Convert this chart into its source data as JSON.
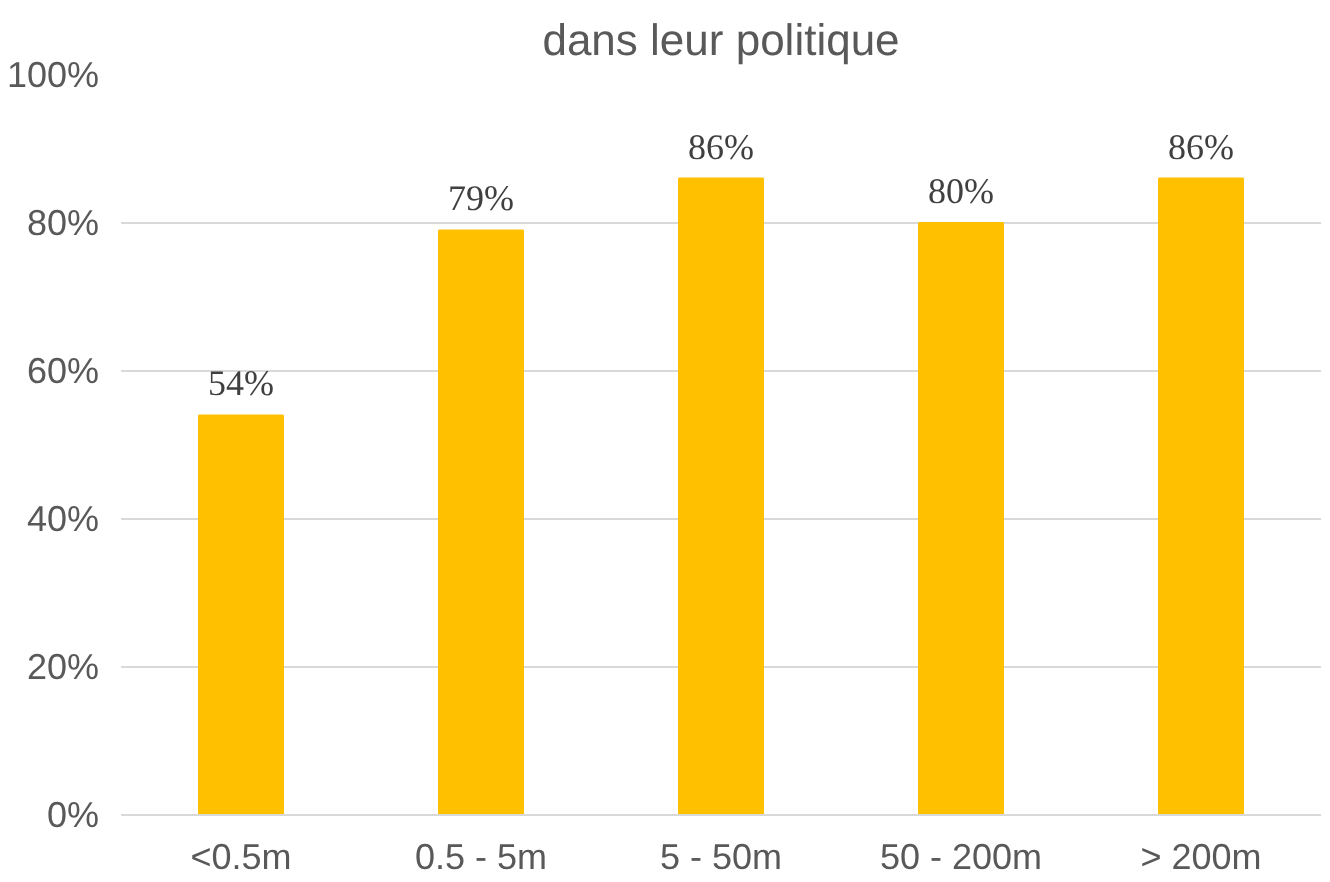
{
  "chart_data": {
    "type": "bar",
    "title": "dans leur politique",
    "categories": [
      "<0.5m",
      "0.5 - 5m",
      "5 - 50m",
      "50 - 200m",
      "> 200m"
    ],
    "values": [
      54,
      79,
      86,
      80,
      86
    ],
    "value_labels": [
      "54%",
      "79%",
      "86%",
      "80%",
      "86%"
    ],
    "color": "#ffc000",
    "ylim": [
      0,
      100
    ],
    "yticks": [
      {
        "value": 0,
        "label": "0%"
      },
      {
        "value": 20,
        "label": "20%"
      },
      {
        "value": 40,
        "label": "40%"
      },
      {
        "value": 60,
        "label": "60%"
      },
      {
        "value": 80,
        "label": "80%"
      },
      {
        "value": 100,
        "label": "100%"
      }
    ],
    "grid": "y"
  }
}
